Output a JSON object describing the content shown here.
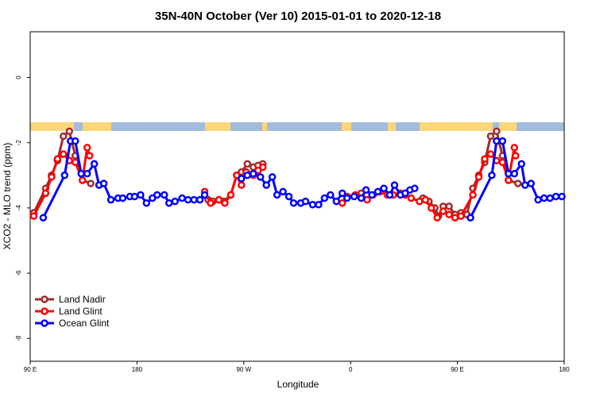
{
  "chart_data": {
    "type": "line",
    "title": "35N-40N October (Ver 10)   2015-01-01 to 2020-12-18",
    "x_label": "Longitude",
    "y_label": "XCO2 - MLO trend (ppm)",
    "xlim": [
      90,
      540
    ],
    "ylim": [
      -8.7,
      1.4
    ],
    "xticks": [
      {
        "value": 90,
        "label": "90 E"
      },
      180,
      {
        "value": 270,
        "label": "90 W"
      },
      {
        "value": 360,
        "label": "0"
      },
      {
        "value": 450,
        "label": "90 E"
      },
      {
        "value": 540,
        "label": "180"
      }
    ],
    "yticks": [
      0,
      -2,
      -4,
      -6,
      -8
    ],
    "legend": "bottom-left",
    "series": [
      {
        "name": "Land Nadir",
        "color": "#a52a2a",
        "x": [
          93,
          103,
          108,
          113,
          118,
          123,
          128,
          134,
          141,
          190,
          240,
          244,
          249,
          253,
          259,
          264,
          268,
          273,
          278,
          282,
          286,
          350,
          421,
          426,
          431,
          434,
          438,
          443,
          448,
          453,
          458,
          463,
          468,
          473,
          478,
          483,
          488,
          493,
          501
        ],
        "values": [
          -4.15,
          -3.4,
          -3.0,
          -2.55,
          -1.8,
          -1.65,
          -2.4,
          -3.15,
          -3.25,
          null,
          -3.75,
          -3.8,
          -3.75,
          -3.8,
          -3.6,
          -3.0,
          -2.9,
          -2.65,
          -2.75,
          -2.7,
          -2.65,
          null,
          -3.7,
          -3.8,
          -4.0,
          -4.25,
          -3.95,
          -3.95,
          -4.2,
          -4.15,
          -4.2,
          -3.4,
          -3.0,
          -2.6,
          -1.8,
          -1.65,
          -2.4,
          -3.15,
          -3.25
        ]
      },
      {
        "name": "Land Glint",
        "color": "#ff0000",
        "x": [
          93,
          103,
          108,
          113,
          118,
          123,
          128,
          134,
          138,
          140,
          190,
          237,
          242,
          249,
          254,
          259,
          264,
          268,
          272,
          278,
          282,
          286,
          350,
          353,
          357,
          364,
          369,
          374,
          379,
          385,
          391,
          396,
          402,
          406,
          411,
          418,
          423,
          428,
          433,
          438,
          443,
          448,
          453,
          463,
          468,
          473,
          478,
          483,
          488,
          493,
          498,
          499
        ],
        "values": [
          -4.25,
          -3.55,
          -3.05,
          -2.5,
          -2.35,
          -2.55,
          -2.6,
          -3.15,
          -2.15,
          -2.4,
          null,
          -3.5,
          -3.85,
          -3.75,
          -3.85,
          -3.6,
          -3.0,
          -3.3,
          -2.9,
          -3.0,
          -2.85,
          -2.75,
          null,
          -3.85,
          -3.65,
          -3.6,
          -3.55,
          -3.75,
          -3.6,
          -3.5,
          -3.6,
          -3.6,
          -3.55,
          -3.6,
          -3.7,
          -3.8,
          -3.75,
          -4.0,
          -4.3,
          -4.1,
          -4.2,
          -4.3,
          -4.25,
          -3.6,
          -3.05,
          -2.5,
          -2.35,
          -2.55,
          -2.6,
          -3.15,
          -2.15,
          -2.4
        ]
      },
      {
        "name": "Ocean Glint",
        "color": "#0000ff",
        "x": [
          101,
          119,
          124,
          128,
          133,
          138,
          144,
          148,
          152,
          158,
          164,
          168,
          174,
          178,
          183,
          188,
          193,
          197,
          203,
          207,
          212,
          218,
          223,
          228,
          233,
          237,
          250,
          268,
          273,
          278,
          284,
          289,
          294,
          298,
          303,
          308,
          312,
          318,
          322,
          328,
          333,
          338,
          343,
          348,
          353,
          357,
          363,
          369,
          373,
          378,
          383,
          388,
          393,
          397,
          402,
          406,
          410,
          414,
          440,
          461,
          479,
          483,
          488,
          493,
          498,
          504,
          507,
          512,
          518,
          523,
          528,
          533,
          538
        ],
        "values": [
          -4.3,
          -3.0,
          -1.95,
          -1.95,
          -2.95,
          -2.95,
          -2.65,
          -3.3,
          -3.25,
          -3.75,
          -3.7,
          -3.7,
          -3.65,
          -3.65,
          -3.6,
          -3.85,
          -3.7,
          -3.6,
          -3.6,
          -3.85,
          -3.8,
          -3.7,
          -3.75,
          -3.75,
          -3.75,
          -3.6,
          null,
          -3.1,
          -3.0,
          -2.95,
          -3.05,
          -3.3,
          -3.05,
          -3.6,
          -3.5,
          -3.65,
          -3.85,
          -3.85,
          -3.8,
          -3.9,
          -3.9,
          -3.7,
          -3.6,
          -3.8,
          -3.55,
          -3.7,
          -3.65,
          -3.7,
          -3.45,
          -3.6,
          -3.5,
          -3.4,
          -3.6,
          -3.3,
          -3.6,
          -3.55,
          -3.45,
          -3.4,
          null,
          -4.3,
          -3.0,
          -1.95,
          -1.95,
          -2.95,
          -2.95,
          -2.65,
          -3.3,
          -3.25,
          -3.75,
          -3.7,
          -3.7,
          -3.65,
          -3.65
        ]
      }
    ]
  }
}
